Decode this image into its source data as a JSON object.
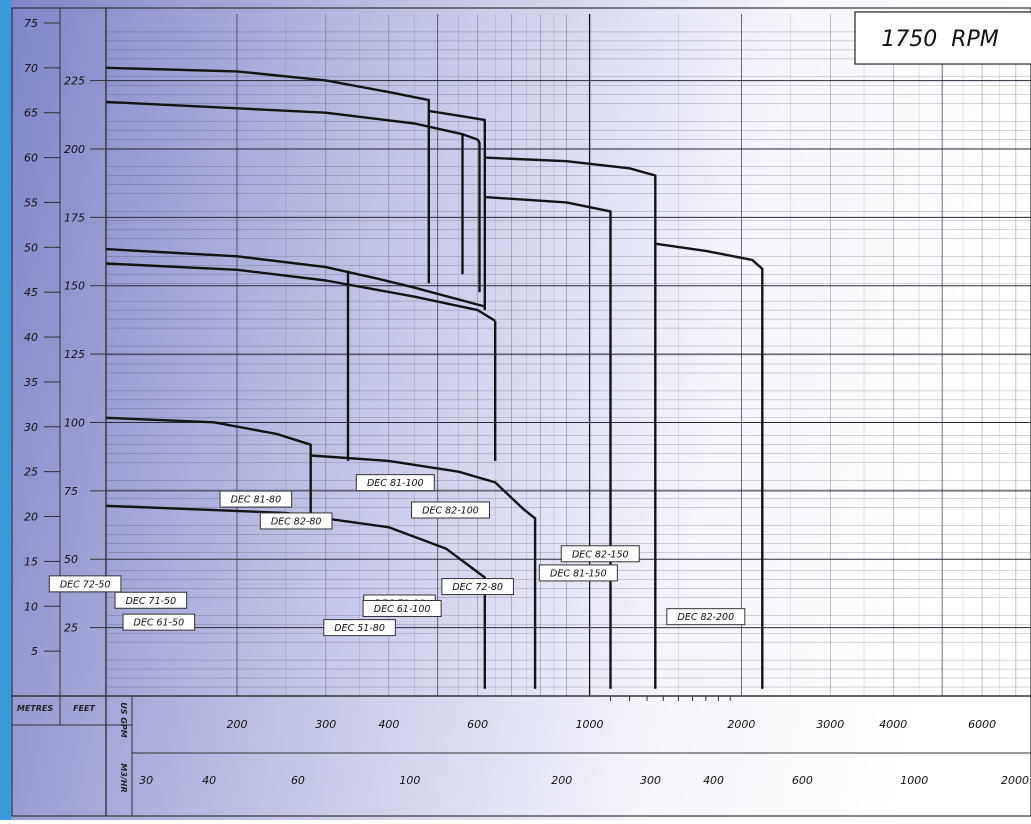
{
  "rpm_label": "1750  RPM",
  "axis_units": {
    "metres": "METRES",
    "feet": "FEET",
    "us_gpm": "US GPM",
    "m3_hr": "M3/HR"
  },
  "colors": {
    "background_left": "#8488c8",
    "background_right": "#ffffff",
    "left_strip": "#3a9ad8",
    "grid": "#2a2a3a",
    "curve": "#141414",
    "label_fill": "#ffffff"
  },
  "chart_data": {
    "type": "line",
    "title": "1750  RPM",
    "xlabel": "US GPM",
    "x2label": "M3/HR",
    "ylabel": "METRES",
    "y2label": "FEET",
    "xscale": "log",
    "xlim": [
      110,
      7500
    ],
    "ylim": [
      0,
      76
    ],
    "grid": true,
    "metres_ticks": [
      5,
      10,
      15,
      20,
      25,
      30,
      35,
      40,
      45,
      50,
      55,
      60,
      65,
      70,
      75
    ],
    "feet_ticks": [
      25,
      50,
      75,
      100,
      125,
      150,
      175,
      200,
      225
    ],
    "gpm_ticks": [
      200,
      300,
      400,
      600,
      1000,
      2000,
      3000,
      4000,
      6000
    ],
    "m3hr_ticks": [
      30,
      40,
      60,
      100,
      200,
      300,
      400,
      600,
      1000,
      2000
    ],
    "series": [
      {
        "name": "DEC 82-80",
        "points": [
          [
            110,
            70
          ],
          [
            200,
            69.6
          ],
          [
            300,
            68.6
          ],
          [
            400,
            67.3
          ],
          [
            480,
            66.4
          ],
          [
            480,
            46
          ]
        ],
        "label_at": [
          262,
          64
        ]
      },
      {
        "name": "DEC 82-100",
        "points": [
          [
            480,
            65.2
          ],
          [
            560,
            64.6
          ],
          [
            620,
            64.2
          ],
          [
            620,
            43
          ]
        ],
        "label_at": [
          530,
          68
        ]
      },
      {
        "name": "DEC 81-80",
        "points": [
          [
            110,
            66.2
          ],
          [
            300,
            65
          ],
          [
            450,
            63.8
          ],
          [
            560,
            62.6
          ],
          [
            560,
            47
          ]
        ],
        "label_at": [
          218,
          72
        ]
      },
      {
        "name": "DEC 81-100",
        "points": [
          [
            560,
            62.6
          ],
          [
            600,
            62
          ],
          [
            605,
            61.6
          ],
          [
            605,
            45
          ]
        ],
        "label_at": [
          412,
          78
        ]
      },
      {
        "name": "DEC 82-150",
        "points": [
          [
            620,
            60
          ],
          [
            900,
            59.6
          ],
          [
            1200,
            58.8
          ],
          [
            1350,
            58
          ],
          [
            1350,
            0.8
          ]
        ],
        "label_at": [
          1050,
          52
        ]
      },
      {
        "name": "DEC 81-150",
        "points": [
          [
            620,
            55.6
          ],
          [
            900,
            55
          ],
          [
            1100,
            54
          ],
          [
            1100,
            0.8
          ]
        ],
        "label_at": [
          950,
          45
        ]
      },
      {
        "name": "DEC 82-200",
        "points": [
          [
            1350,
            50.4
          ],
          [
            1700,
            49.6
          ],
          [
            2100,
            48.6
          ],
          [
            2200,
            47.6
          ],
          [
            2200,
            0.8
          ]
        ],
        "label_at": [
          1700,
          29
        ]
      },
      {
        "name": "DEC 72-50",
        "points": [
          [
            110,
            49.8
          ],
          [
            200,
            49
          ],
          [
            300,
            47.8
          ],
          [
            380,
            46.5
          ],
          [
            450,
            45.5
          ],
          [
            620,
            43.4
          ]
        ],
        "label_at": [
          100,
          41
        ]
      },
      {
        "name": "DEC 72-80",
        "points": [
          [
            332,
            47.4
          ],
          [
            332,
            26.2
          ]
        ],
        "label_at": [
          600,
          40
        ]
      },
      {
        "name": "DEC 71-50",
        "points": [
          [
            110,
            48.2
          ],
          [
            200,
            47.5
          ],
          [
            300,
            46.3
          ],
          [
            450,
            44.5
          ],
          [
            600,
            43
          ],
          [
            650,
            41.8
          ]
        ],
        "label_at": [
          135,
          35
        ]
      },
      {
        "name": "DEC 71-80",
        "points": [
          [
            650,
            41.8
          ],
          [
            650,
            26.2
          ]
        ],
        "label_at": [
          420,
          34
        ]
      },
      {
        "name": "DEC 61-50",
        "points": [
          [
            110,
            31
          ],
          [
            180,
            30.5
          ],
          [
            240,
            29.2
          ],
          [
            280,
            28
          ],
          [
            280,
            19.2
          ]
        ],
        "label_at": [
          140,
          27
        ]
      },
      {
        "name": "DEC 61-100",
        "points": [
          [
            280,
            26.8
          ],
          [
            400,
            26.2
          ],
          [
            550,
            25
          ],
          [
            650,
            23.8
          ],
          [
            740,
            20.8
          ],
          [
            780,
            19.8
          ],
          [
            780,
            0.8
          ]
        ],
        "label_at": [
          425,
          32
        ]
      },
      {
        "name": "DEC 51-80",
        "points": [
          [
            110,
            21.2
          ],
          [
            250,
            20.4
          ],
          [
            400,
            18.8
          ],
          [
            520,
            16.4
          ],
          [
            620,
            13.2
          ],
          [
            620,
            0.8
          ]
        ],
        "label_at": [
          350,
          25
        ]
      },
      {
        "name": "",
        "points": [
          [
            1000,
            76
          ],
          [
            1000,
            0
          ]
        ],
        "label_at": null
      }
    ]
  }
}
